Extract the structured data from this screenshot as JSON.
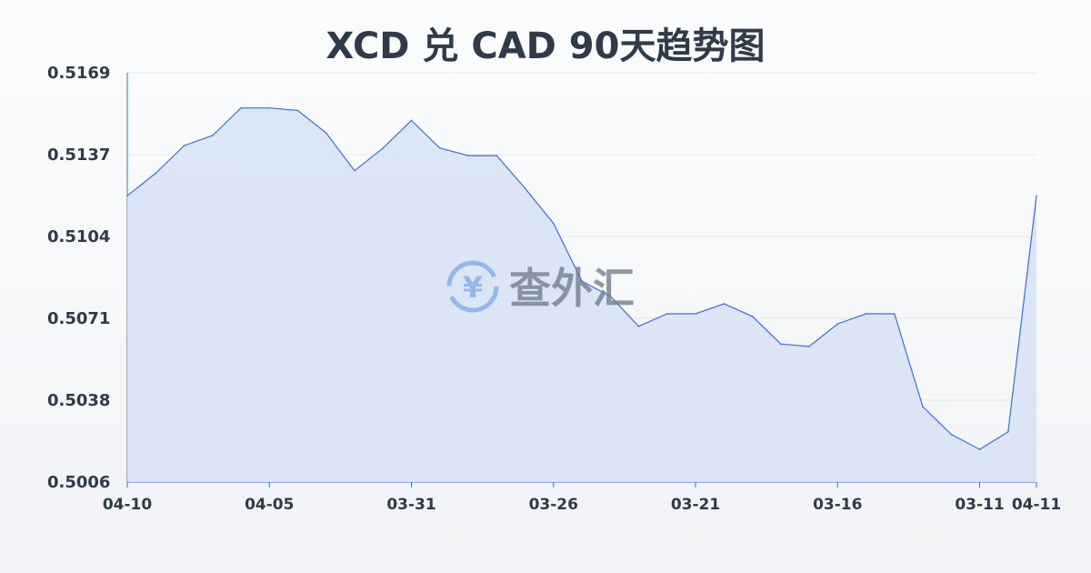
{
  "chart_data": {
    "type": "area",
    "title": "XCD 兑 CAD 90天趋势图",
    "xlabel": "",
    "ylabel": "",
    "ylim": [
      0.5006,
      0.5169
    ],
    "yticks": [
      "0.5169",
      "0.5137",
      "0.5104",
      "0.5071",
      "0.5038",
      "0.5006"
    ],
    "xticks": [
      {
        "index": 0,
        "label": "04-10"
      },
      {
        "index": 5,
        "label": "04-05"
      },
      {
        "index": 10,
        "label": "03-31"
      },
      {
        "index": 15,
        "label": "03-26"
      },
      {
        "index": 20,
        "label": "03-21"
      },
      {
        "index": 25,
        "label": "03-16"
      },
      {
        "index": 30,
        "label": "03-11"
      },
      {
        "index": 32,
        "label": "04-11"
      }
    ],
    "values": [
      0.512,
      0.5129,
      0.514,
      0.5144,
      0.5155,
      0.5155,
      0.5154,
      0.5145,
      0.513,
      0.5139,
      0.515,
      0.5139,
      0.5136,
      0.5136,
      0.5123,
      0.5109,
      0.5086,
      0.508,
      0.5068,
      0.5073,
      0.5073,
      0.5077,
      0.5072,
      0.5061,
      0.506,
      0.5069,
      0.5073,
      0.5073,
      0.5036,
      0.5025,
      0.5019,
      0.5026,
      0.512
    ],
    "grid": true,
    "line_color": "#3a6fd8",
    "fill_color": "#d6e2f6"
  },
  "watermark": {
    "text": "查外汇",
    "icon": "yen-exchange-icon",
    "color": "#5b8fe0"
  }
}
